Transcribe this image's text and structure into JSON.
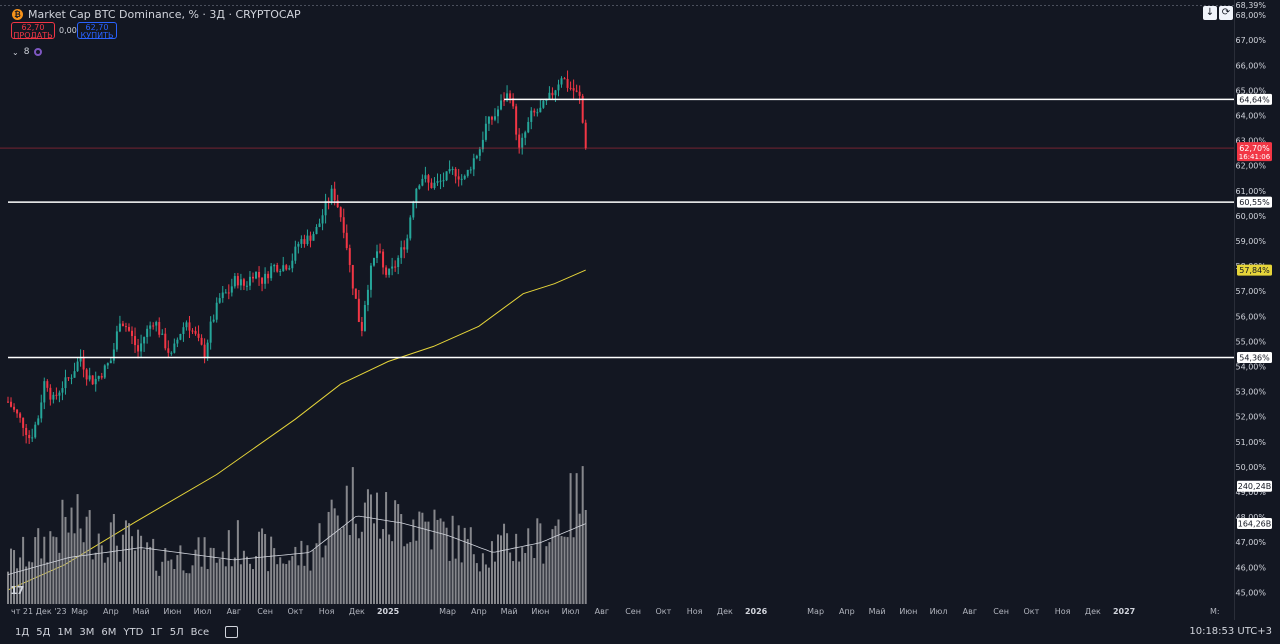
{
  "header": {
    "title": "Market Cap BTC Dominance, % · 3Д · CRYPTOCAP",
    "coin_icon": "bitcoin-icon",
    "sell_price": "62,70",
    "sell_label": "ПРОДАТЬ",
    "spread": "0,00",
    "buy_price": "62,70",
    "buy_label": "КУПИТЬ"
  },
  "indicators": {
    "count": "8"
  },
  "top_right": {
    "arrow_icon": "download-icon",
    "refresh_icon": "refresh-icon"
  },
  "bottom_bar": {
    "ranges": [
      "1Д",
      "5Д",
      "1М",
      "3М",
      "6М",
      "YTD",
      "1Г",
      "5Л",
      "Все"
    ],
    "clock": "10:18:53 UTC+3"
  },
  "colors": {
    "up": "#26a69a",
    "down": "#f23645",
    "ma": "#e6d53a",
    "background": "#131722",
    "volume": "#9b9b9f"
  },
  "chart_data": {
    "type": "candlestick",
    "title": "Market Cap BTC Dominance, % · 3Д · CRYPTOCAP",
    "ylabel": "%",
    "ylim": [
      44.5,
      68.4
    ],
    "x_start": "2023-12-21",
    "x_end": "2027-04-20",
    "interval_days": 3,
    "ticks": [
      {
        "label": "чт 21 Дек '23",
        "date": "2023-12-21"
      },
      {
        "label": "Мар",
        "date": "2024-03-01"
      },
      {
        "label": "Апр",
        "date": "2024-04-01"
      },
      {
        "label": "Май",
        "date": "2024-05-01"
      },
      {
        "label": "Июн",
        "date": "2024-06-01"
      },
      {
        "label": "Июл",
        "date": "2024-07-01"
      },
      {
        "label": "Авг",
        "date": "2024-08-01"
      },
      {
        "label": "Сен",
        "date": "2024-09-01"
      },
      {
        "label": "Окт",
        "date": "2024-10-01"
      },
      {
        "label": "Ноя",
        "date": "2024-11-01"
      },
      {
        "label": "Дек",
        "date": "2024-12-01"
      },
      {
        "label": "2025",
        "date": "2025-01-01"
      },
      {
        "label": "Мар",
        "date": "2025-03-01"
      },
      {
        "label": "Апр",
        "date": "2025-04-01"
      },
      {
        "label": "Май",
        "date": "2025-05-01"
      },
      {
        "label": "Июн",
        "date": "2025-06-01"
      },
      {
        "label": "Июл",
        "date": "2025-07-01"
      },
      {
        "label": "Авг",
        "date": "2025-08-01"
      },
      {
        "label": "Сен",
        "date": "2025-09-01"
      },
      {
        "label": "Окт",
        "date": "2025-10-01"
      },
      {
        "label": "Ноя",
        "date": "2025-11-01"
      },
      {
        "label": "Дек",
        "date": "2025-12-01"
      },
      {
        "label": "2026",
        "date": "2026-01-01"
      },
      {
        "label": "Мар",
        "date": "2026-03-01"
      },
      {
        "label": "Апр",
        "date": "2026-04-01"
      },
      {
        "label": "Май",
        "date": "2026-05-01"
      },
      {
        "label": "Июн",
        "date": "2026-06-01"
      },
      {
        "label": "Июл",
        "date": "2026-07-01"
      },
      {
        "label": "Авг",
        "date": "2026-08-01"
      },
      {
        "label": "Сен",
        "date": "2026-09-01"
      },
      {
        "label": "Окт",
        "date": "2026-10-01"
      },
      {
        "label": "Ноя",
        "date": "2026-11-01"
      },
      {
        "label": "Дек",
        "date": "2026-12-01"
      },
      {
        "label": "2027",
        "date": "2027-01-01"
      },
      {
        "label": "М:",
        "date": "2027-04-01"
      }
    ],
    "y_ticks": [
      "45,00%",
      "46,00%",
      "47,00%",
      "48,00%",
      "49,00%",
      "50,00%",
      "51,00%",
      "52,00%",
      "53,00%",
      "54,00%",
      "55,00%",
      "56,00%",
      "57,00%",
      "58,00%",
      "59,00%",
      "60,00%",
      "61,00%",
      "62,00%",
      "63,00%",
      "64,00%",
      "65,00%",
      "66,00%",
      "67,00%",
      "68,00%"
    ],
    "top_tick": "68,39%",
    "closes": [
      {
        "d": "2023-12-21",
        "c": 52.6
      },
      {
        "d": "2024-01-05",
        "c": 51.7
      },
      {
        "d": "2024-01-12",
        "c": 51.1
      },
      {
        "d": "2024-01-20",
        "c": 52.0
      },
      {
        "d": "2024-01-27",
        "c": 53.6
      },
      {
        "d": "2024-02-03",
        "c": 52.6
      },
      {
        "d": "2024-02-12",
        "c": 53.2
      },
      {
        "d": "2024-02-21",
        "c": 53.6
      },
      {
        "d": "2024-03-02",
        "c": 54.4
      },
      {
        "d": "2024-03-08",
        "c": 53.7
      },
      {
        "d": "2024-03-15",
        "c": 53.4
      },
      {
        "d": "2024-03-24",
        "c": 53.8
      },
      {
        "d": "2024-04-02",
        "c": 54.3
      },
      {
        "d": "2024-04-10",
        "c": 55.9
      },
      {
        "d": "2024-04-18",
        "c": 55.5
      },
      {
        "d": "2024-04-28",
        "c": 54.6
      },
      {
        "d": "2024-05-05",
        "c": 55.3
      },
      {
        "d": "2024-05-14",
        "c": 55.9
      },
      {
        "d": "2024-05-22",
        "c": 55.1
      },
      {
        "d": "2024-05-31",
        "c": 54.4
      },
      {
        "d": "2024-06-08",
        "c": 55.3
      },
      {
        "d": "2024-06-15",
        "c": 55.8
      },
      {
        "d": "2024-06-24",
        "c": 55.2
      },
      {
        "d": "2024-07-03",
        "c": 54.5
      },
      {
        "d": "2024-07-09",
        "c": 55.6
      },
      {
        "d": "2024-07-18",
        "c": 56.7
      },
      {
        "d": "2024-07-27",
        "c": 57.0
      },
      {
        "d": "2024-08-03",
        "c": 57.5
      },
      {
        "d": "2024-08-12",
        "c": 57.2
      },
      {
        "d": "2024-08-21",
        "c": 57.8
      },
      {
        "d": "2024-08-30",
        "c": 57.4
      },
      {
        "d": "2024-09-08",
        "c": 58.0
      },
      {
        "d": "2024-09-17",
        "c": 58.0
      },
      {
        "d": "2024-09-26",
        "c": 58.1
      },
      {
        "d": "2024-10-05",
        "c": 59.0
      },
      {
        "d": "2024-10-14",
        "c": 59.1
      },
      {
        "d": "2024-10-23",
        "c": 59.5
      },
      {
        "d": "2024-11-01",
        "c": 60.5
      },
      {
        "d": "2024-11-07",
        "c": 61.0
      },
      {
        "d": "2024-11-13",
        "c": 60.3
      },
      {
        "d": "2024-11-19",
        "c": 59.4
      },
      {
        "d": "2024-11-25",
        "c": 57.7
      },
      {
        "d": "2024-12-02",
        "c": 56.2
      },
      {
        "d": "2024-12-05",
        "c": 55.2
      },
      {
        "d": "2024-12-10",
        "c": 56.9
      },
      {
        "d": "2024-12-16",
        "c": 58.0
      },
      {
        "d": "2024-12-22",
        "c": 58.7
      },
      {
        "d": "2024-12-28",
        "c": 57.7
      },
      {
        "d": "2025-01-03",
        "c": 57.7
      },
      {
        "d": "2025-01-09",
        "c": 58.1
      },
      {
        "d": "2025-01-15",
        "c": 58.7
      },
      {
        "d": "2025-01-21",
        "c": 59.2
      },
      {
        "d": "2025-01-24",
        "c": 60.4
      },
      {
        "d": "2025-01-30",
        "c": 61.3
      },
      {
        "d": "2025-02-05",
        "c": 61.6
      },
      {
        "d": "2025-02-11",
        "c": 61.2
      },
      {
        "d": "2025-02-20",
        "c": 61.3
      },
      {
        "d": "2025-02-26",
        "c": 61.5
      },
      {
        "d": "2025-03-08",
        "c": 61.8
      },
      {
        "d": "2025-03-17",
        "c": 61.4
      },
      {
        "d": "2025-03-26",
        "c": 62.2
      },
      {
        "d": "2025-04-02",
        "c": 62.7
      },
      {
        "d": "2025-04-08",
        "c": 63.6
      },
      {
        "d": "2025-04-17",
        "c": 64.0
      },
      {
        "d": "2025-04-26",
        "c": 64.7
      },
      {
        "d": "2025-05-02",
        "c": 64.9
      },
      {
        "d": "2025-05-05",
        "c": 64.2
      },
      {
        "d": "2025-05-11",
        "c": 62.6
      },
      {
        "d": "2025-05-17",
        "c": 63.3
      },
      {
        "d": "2025-05-23",
        "c": 64.0
      },
      {
        "d": "2025-06-01",
        "c": 64.2
      },
      {
        "d": "2025-06-10",
        "c": 64.7
      },
      {
        "d": "2025-06-16",
        "c": 65.1
      },
      {
        "d": "2025-06-22",
        "c": 65.6
      },
      {
        "d": "2025-06-28",
        "c": 65.2
      },
      {
        "d": "2025-07-04",
        "c": 65.0
      },
      {
        "d": "2025-07-10",
        "c": 64.7
      },
      {
        "d": "2025-07-16",
        "c": 62.7
      }
    ],
    "sma": [
      {
        "d": "2023-12-21",
        "v": 45.1
      },
      {
        "d": "2024-02-15",
        "v": 46.1
      },
      {
        "d": "2024-04-25",
        "v": 47.8
      },
      {
        "d": "2024-07-15",
        "v": 49.7
      },
      {
        "d": "2024-10-01",
        "v": 51.9
      },
      {
        "d": "2024-11-15",
        "v": 53.3
      },
      {
        "d": "2025-01-01",
        "v": 54.2
      },
      {
        "d": "2025-02-15",
        "v": 54.8
      },
      {
        "d": "2025-04-01",
        "v": 55.6
      },
      {
        "d": "2025-05-15",
        "v": 56.9
      },
      {
        "d": "2025-06-15",
        "v": 57.3
      },
      {
        "d": "2025-07-16",
        "v": 57.84
      }
    ],
    "horizontal_levels": [
      {
        "label": "64,64%",
        "value": 64.64,
        "from": "2025-04-26"
      },
      {
        "label": "60,55%",
        "value": 60.55,
        "from": "2023-12-21"
      },
      {
        "label": "54,36%",
        "value": 54.36,
        "from": "2023-12-21"
      }
    ],
    "current_price": {
      "label": "62,70%",
      "value": 62.7,
      "countdown": "16:41:06"
    },
    "sma_label": {
      "label": "57,84%",
      "value": 57.84
    },
    "volume": {
      "unit": "B",
      "labels": [
        {
          "label": "240,24B",
          "value": 240.24
        },
        {
          "label": "164,26B",
          "value": 164.26
        }
      ],
      "max": 310,
      "levels": [
        {
          "d": "2023-12-21",
          "v": 90
        },
        {
          "d": "2024-01-25",
          "v": 130
        },
        {
          "d": "2024-02-20",
          "v": 180
        },
        {
          "d": "2024-03-15",
          "v": 160
        },
        {
          "d": "2024-04-15",
          "v": 140
        },
        {
          "d": "2024-05-15",
          "v": 100
        },
        {
          "d": "2024-06-15",
          "v": 110
        },
        {
          "d": "2024-07-15",
          "v": 105
        },
        {
          "d": "2024-08-10",
          "v": 140
        },
        {
          "d": "2024-09-15",
          "v": 100
        },
        {
          "d": "2024-10-15",
          "v": 110
        },
        {
          "d": "2024-11-10",
          "v": 200
        },
        {
          "d": "2024-12-01",
          "v": 240
        },
        {
          "d": "2025-01-01",
          "v": 180
        },
        {
          "d": "2025-02-01",
          "v": 190
        },
        {
          "d": "2025-03-01",
          "v": 150
        },
        {
          "d": "2025-04-01",
          "v": 120
        },
        {
          "d": "2025-05-01",
          "v": 130
        },
        {
          "d": "2025-06-01",
          "v": 140
        },
        {
          "d": "2025-07-16",
          "v": 240
        }
      ],
      "ma_levels": [
        {
          "d": "2023-12-21",
          "v": 60
        },
        {
          "d": "2024-02-20",
          "v": 95
        },
        {
          "d": "2024-05-01",
          "v": 115
        },
        {
          "d": "2024-08-01",
          "v": 90
        },
        {
          "d": "2024-10-15",
          "v": 105
        },
        {
          "d": "2024-12-01",
          "v": 180
        },
        {
          "d": "2025-01-15",
          "v": 165
        },
        {
          "d": "2025-03-01",
          "v": 140
        },
        {
          "d": "2025-04-15",
          "v": 105
        },
        {
          "d": "2025-06-01",
          "v": 125
        },
        {
          "d": "2025-07-16",
          "v": 164
        }
      ]
    }
  }
}
